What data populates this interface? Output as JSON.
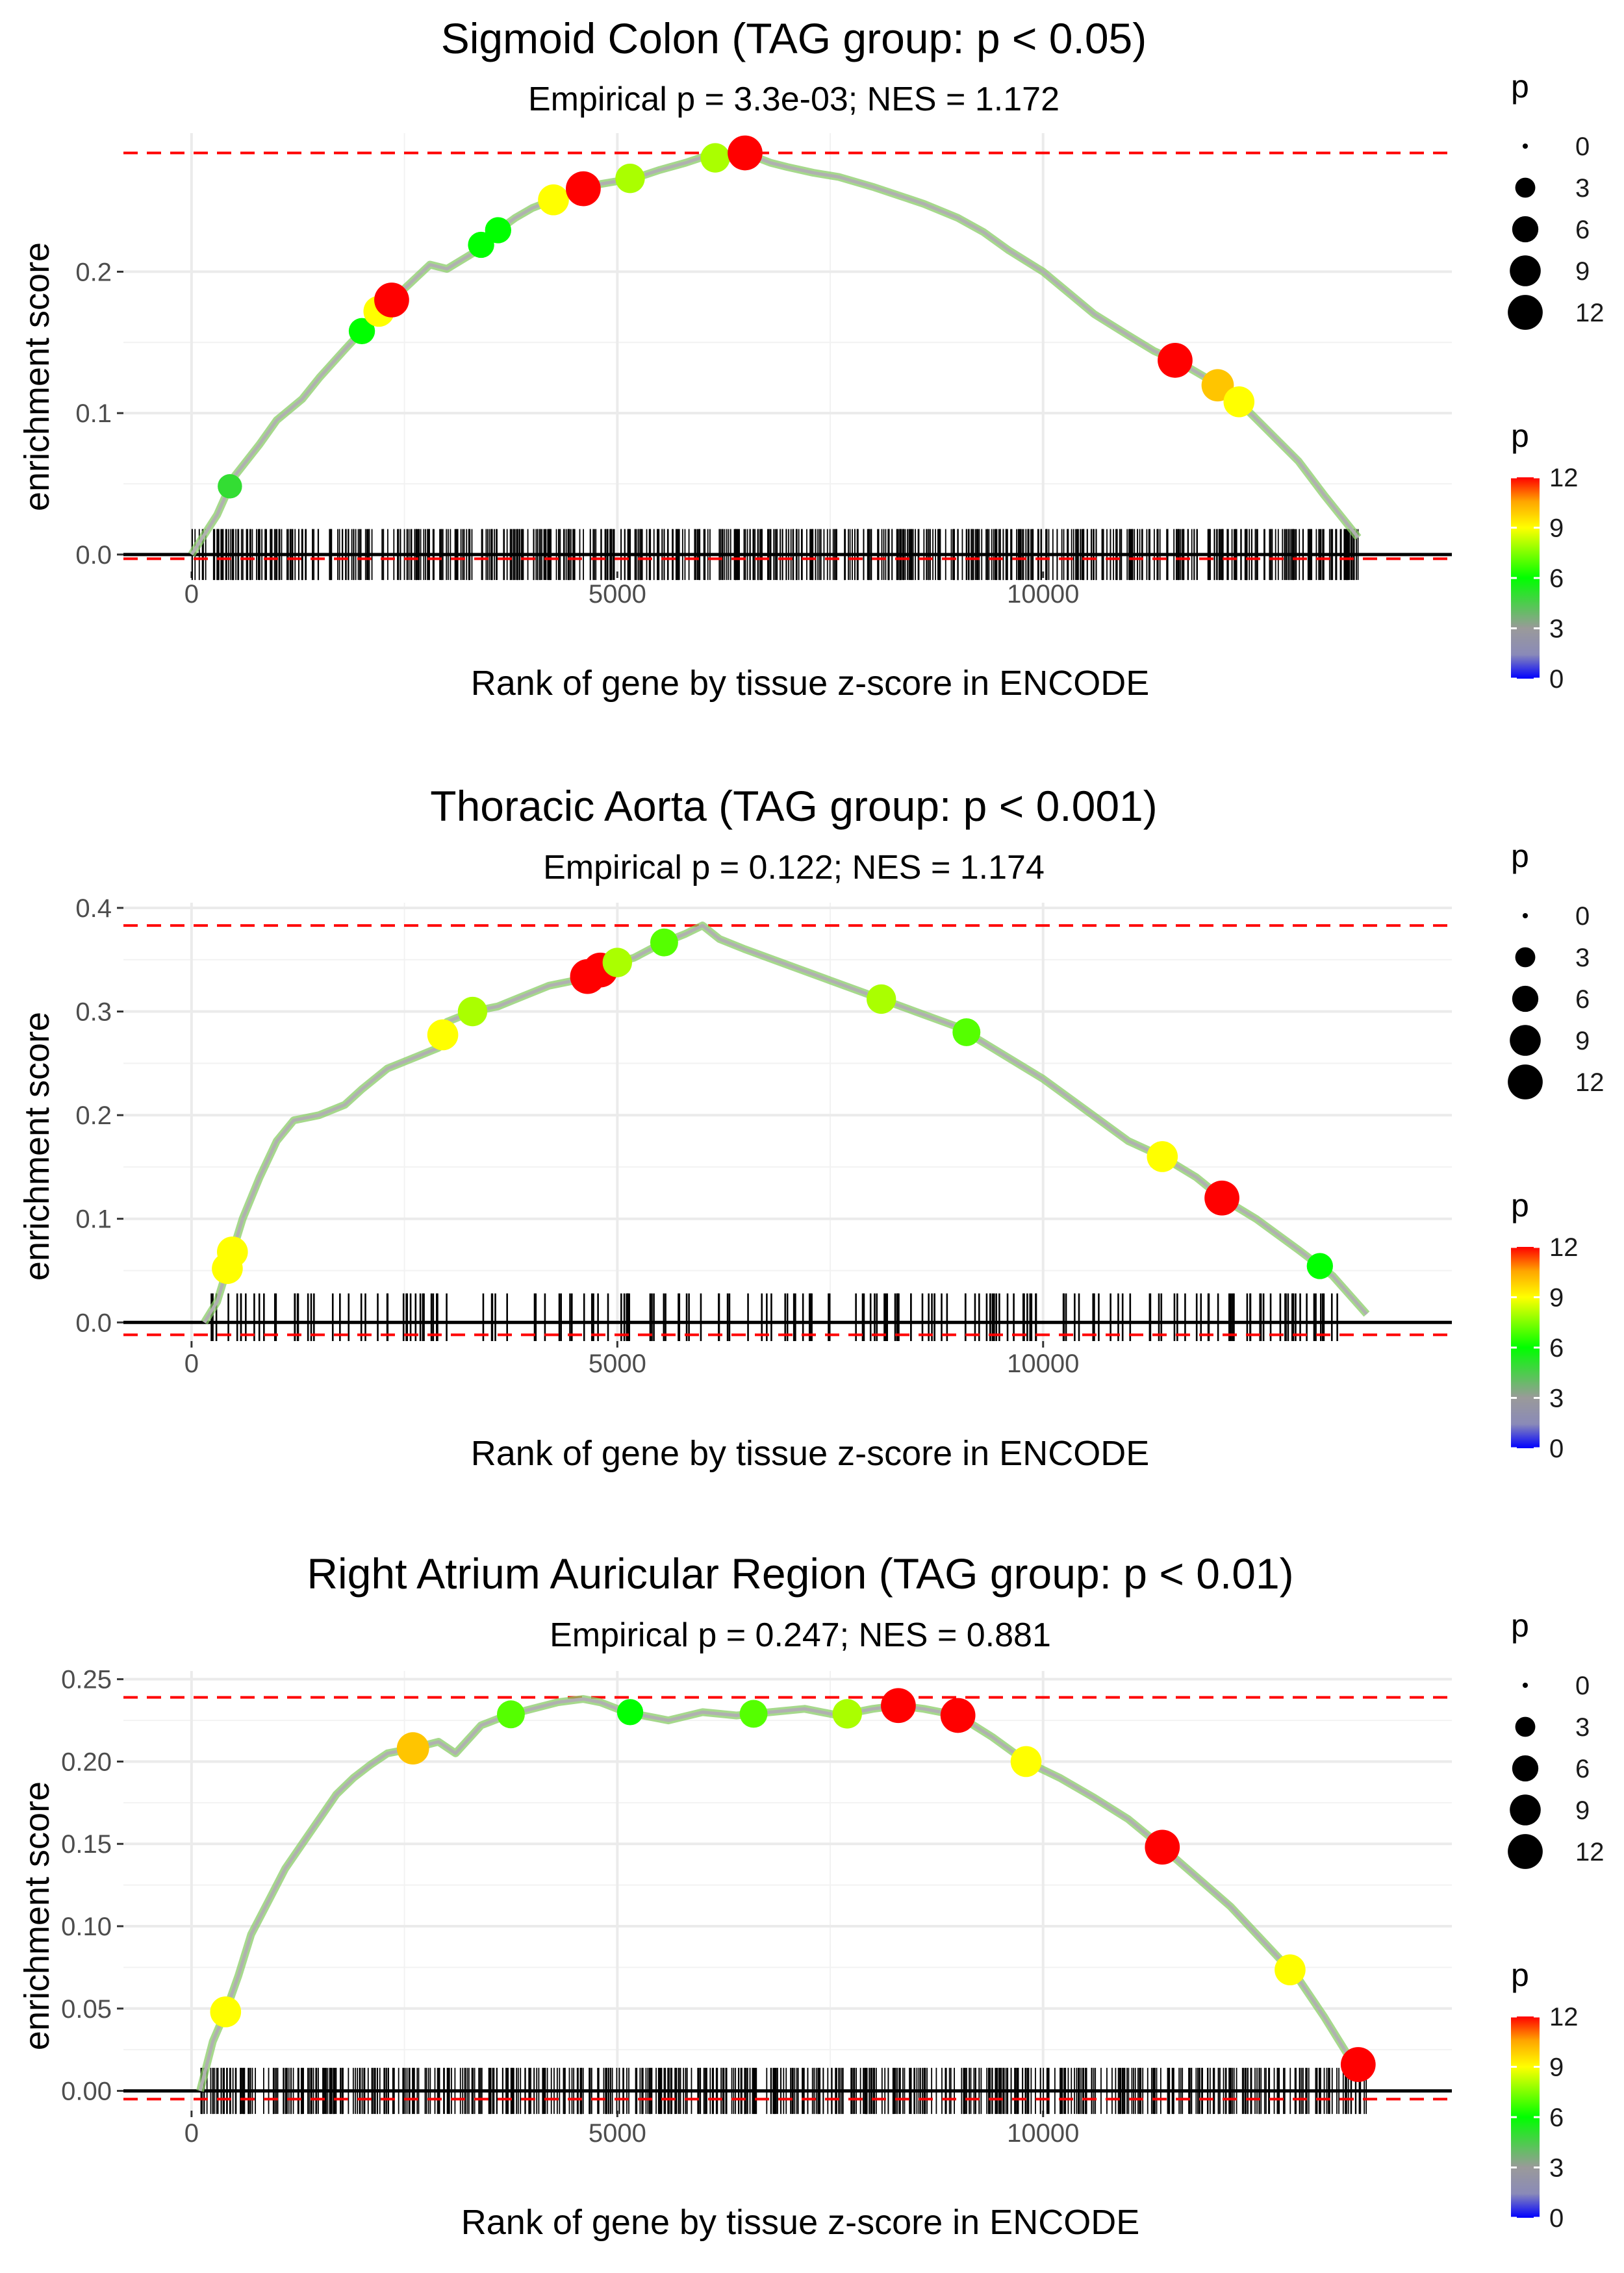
{
  "chart_data": [
    {
      "type": "line",
      "title": "Sigmoid Colon (TAG group: p < 0.05)",
      "subtitle": "Empirical p = 3.3e-03; NES = 1.172",
      "xlabel": "Rank of gene by tissue z-score in ENCODE",
      "ylabel": "enrichment score",
      "xlim": [
        -800,
        14800
      ],
      "ylim": [
        -0.012,
        0.298
      ],
      "x_ticks": [
        0,
        5000,
        10000
      ],
      "x_tick_labels": [
        "0",
        "5000",
        "10000"
      ],
      "y_ticks": [
        0.0,
        0.1,
        0.2
      ],
      "y_tick_labels": [
        "0.0",
        "0.1",
        "0.2"
      ],
      "max_es": 0.284,
      "min_es": -0.003,
      "rug_density": "dense",
      "rug_seed": 11,
      "rug_count": 700,
      "rug_top": 0.018,
      "rug_bottom": -0.018,
      "curve_x": [
        0,
        300,
        500,
        800,
        1000,
        1300,
        1500,
        1800,
        2000,
        2200,
        2500,
        2800,
        3000,
        3300,
        3500,
        3800,
        4000,
        4300,
        4500,
        4800,
        5000,
        5300,
        5500,
        5800,
        6000,
        6300,
        6500,
        6800,
        7000,
        7300,
        7600,
        8000,
        8300,
        8600,
        9000,
        9300,
        9600,
        10000,
        10300,
        10600,
        11000,
        11300,
        11600,
        12000,
        12300,
        12600,
        13000,
        13300,
        13700
      ],
      "curve_y": [
        0.0,
        0.028,
        0.055,
        0.078,
        0.095,
        0.11,
        0.125,
        0.145,
        0.158,
        0.172,
        0.188,
        0.205,
        0.202,
        0.213,
        0.225,
        0.238,
        0.245,
        0.252,
        0.257,
        0.262,
        0.264,
        0.268,
        0.272,
        0.277,
        0.281,
        0.28,
        0.284,
        0.277,
        0.274,
        0.27,
        0.267,
        0.26,
        0.254,
        0.248,
        0.238,
        0.228,
        0.215,
        0.2,
        0.185,
        0.17,
        0.155,
        0.144,
        0.136,
        0.122,
        0.108,
        0.09,
        0.066,
        0.042,
        0.012
      ],
      "points": [
        {
          "x": 450,
          "p": 5
        },
        {
          "x": 2000,
          "p": 6
        },
        {
          "x": 2200,
          "p": 9
        },
        {
          "x": 2350,
          "p": 12
        },
        {
          "x": 3400,
          "p": 6
        },
        {
          "x": 3600,
          "p": 6
        },
        {
          "x": 4250,
          "p": 9
        },
        {
          "x": 4600,
          "p": 12
        },
        {
          "x": 5150,
          "p": 8
        },
        {
          "x": 6150,
          "p": 8
        },
        {
          "x": 6500,
          "p": 12
        },
        {
          "x": 11550,
          "p": 12
        },
        {
          "x": 12050,
          "p": 10
        },
        {
          "x": 12300,
          "p": 9
        }
      ],
      "size_legend": {
        "title": "p",
        "labels": [
          "0",
          "3",
          "6",
          "9",
          "12"
        ],
        "values": [
          0,
          3,
          6,
          9,
          12
        ]
      },
      "color_legend": {
        "title": "p",
        "labels": [
          "12",
          "9",
          "6",
          "3",
          "0"
        ],
        "values": [
          12,
          9,
          6,
          3,
          0
        ]
      }
    },
    {
      "type": "line",
      "title": "Thoracic Aorta (TAG group: p < 0.001)",
      "subtitle": "Empirical p = 0.122; NES = 1.174",
      "xlabel": "Rank of gene by tissue z-score in ENCODE",
      "ylabel": "enrichment score",
      "xlim": [
        -800,
        14800
      ],
      "ylim": [
        -0.018,
        0.405
      ],
      "x_ticks": [
        0,
        5000,
        10000
      ],
      "x_tick_labels": [
        "0",
        "5000",
        "10000"
      ],
      "y_ticks": [
        0.0,
        0.1,
        0.2,
        0.3,
        0.4
      ],
      "y_tick_labels": [
        "0.0",
        "0.1",
        "0.2",
        "0.3",
        "0.4"
      ],
      "max_es": 0.383,
      "min_es": -0.012,
      "rug_density": "sparse",
      "rug_seed": 29,
      "rug_count": 190,
      "rug_top": 0.028,
      "rug_bottom": -0.018,
      "curve_x": [
        150,
        300,
        450,
        600,
        800,
        1000,
        1200,
        1500,
        1800,
        2000,
        2300,
        2600,
        2900,
        3000,
        3300,
        3600,
        3900,
        4200,
        4500,
        4700,
        4900,
        5200,
        5500,
        5800,
        6000,
        6200,
        6500,
        7000,
        7500,
        8000,
        8500,
        9000,
        9500,
        10000,
        10500,
        11000,
        11400,
        11800,
        12100,
        12500,
        13000,
        13400,
        13800
      ],
      "curve_y": [
        0.0,
        0.02,
        0.06,
        0.1,
        0.14,
        0.175,
        0.195,
        0.2,
        0.21,
        0.225,
        0.245,
        0.255,
        0.265,
        0.29,
        0.3,
        0.305,
        0.315,
        0.325,
        0.33,
        0.335,
        0.345,
        0.352,
        0.365,
        0.375,
        0.383,
        0.37,
        0.36,
        0.345,
        0.33,
        0.315,
        0.3,
        0.285,
        0.26,
        0.235,
        0.205,
        0.175,
        0.16,
        0.14,
        0.12,
        0.1,
        0.07,
        0.045,
        0.008
      ],
      "points": [
        {
          "x": 420,
          "p": 9
        },
        {
          "x": 480,
          "p": 9
        },
        {
          "x": 2950,
          "p": 9
        },
        {
          "x": 3300,
          "p": 8
        },
        {
          "x": 4650,
          "p": 12
        },
        {
          "x": 4800,
          "p": 12
        },
        {
          "x": 5000,
          "p": 8
        },
        {
          "x": 5550,
          "p": 7
        },
        {
          "x": 8100,
          "p": 8
        },
        {
          "x": 9100,
          "p": 7
        },
        {
          "x": 11400,
          "p": 9
        },
        {
          "x": 12100,
          "p": 12
        },
        {
          "x": 13250,
          "p": 6
        }
      ],
      "size_legend": {
        "title": "p",
        "labels": [
          "0",
          "3",
          "6",
          "9",
          "12"
        ],
        "values": [
          0,
          3,
          6,
          9,
          12
        ]
      },
      "color_legend": {
        "title": "p",
        "labels": [
          "12",
          "9",
          "6",
          "3",
          "0"
        ],
        "values": [
          12,
          9,
          6,
          3,
          0
        ]
      }
    },
    {
      "type": "line",
      "title": "Right Atrium Auricular Region (TAG group: p < 0.01)",
      "subtitle": "Empirical p = 0.247; NES = 0.881",
      "xlabel": "Rank of gene by tissue z-score in ENCODE",
      "ylabel": "enrichment score",
      "xlim": [
        -800,
        14800
      ],
      "ylim": [
        -0.012,
        0.255
      ],
      "x_ticks": [
        0,
        5000,
        10000
      ],
      "x_tick_labels": [
        "0",
        "5000",
        "10000"
      ],
      "y_ticks": [
        0.0,
        0.05,
        0.1,
        0.15,
        0.2,
        0.25
      ],
      "y_tick_labels": [
        "0.00",
        "0.05",
        "0.10",
        "0.15",
        "0.20",
        "0.25"
      ],
      "max_es": 0.239,
      "min_es": -0.005,
      "rug_density": "dense",
      "rug_seed": 47,
      "rug_count": 650,
      "rug_top": 0.014,
      "rug_bottom": -0.014,
      "curve_x": [
        100,
        250,
        400,
        550,
        700,
        900,
        1100,
        1300,
        1500,
        1700,
        1900,
        2100,
        2300,
        2600,
        2900,
        3100,
        3400,
        3700,
        4000,
        4300,
        4600,
        4800,
        5000,
        5300,
        5600,
        6000,
        6400,
        6800,
        7200,
        7600,
        8000,
        8300,
        8600,
        9000,
        9400,
        9800,
        10200,
        10600,
        11000,
        11400,
        11800,
        12200,
        12600,
        13000,
        13300,
        13600,
        13800
      ],
      "curve_y": [
        0.0,
        0.03,
        0.048,
        0.07,
        0.095,
        0.115,
        0.135,
        0.15,
        0.165,
        0.18,
        0.19,
        0.198,
        0.205,
        0.208,
        0.212,
        0.205,
        0.222,
        0.228,
        0.232,
        0.236,
        0.238,
        0.236,
        0.232,
        0.228,
        0.225,
        0.23,
        0.228,
        0.23,
        0.232,
        0.228,
        0.232,
        0.234,
        0.232,
        0.228,
        0.215,
        0.2,
        0.19,
        0.178,
        0.165,
        0.148,
        0.13,
        0.112,
        0.09,
        0.068,
        0.045,
        0.02,
        0.012
      ],
      "points": [
        {
          "x": 400,
          "p": 9
        },
        {
          "x": 2600,
          "p": 10
        },
        {
          "x": 3750,
          "p": 7
        },
        {
          "x": 5150,
          "p": 6
        },
        {
          "x": 6600,
          "p": 7
        },
        {
          "x": 7700,
          "p": 8
        },
        {
          "x": 8300,
          "p": 12
        },
        {
          "x": 9000,
          "p": 12
        },
        {
          "x": 9800,
          "p": 9
        },
        {
          "x": 11400,
          "p": 12
        },
        {
          "x": 12900,
          "p": 9
        },
        {
          "x": 13700,
          "p": 12
        }
      ],
      "size_legend": {
        "title": "p",
        "labels": [
          "0",
          "3",
          "6",
          "9",
          "12"
        ],
        "values": [
          0,
          3,
          6,
          9,
          12
        ]
      },
      "color_legend": {
        "title": "p",
        "labels": [
          "12",
          "9",
          "6",
          "3",
          "0"
        ],
        "values": [
          12,
          9,
          6,
          3,
          0
        ]
      }
    }
  ]
}
